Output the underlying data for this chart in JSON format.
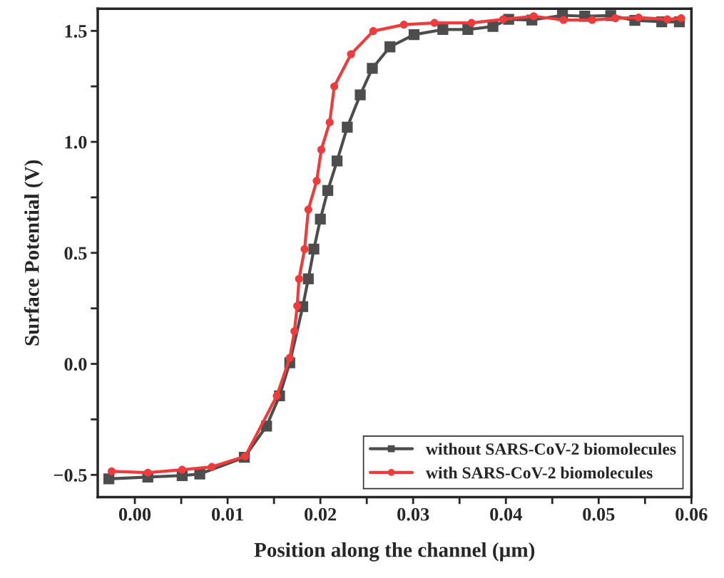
{
  "chart_data": {
    "type": "line",
    "xlabel": "Position along the channel (µm)",
    "ylabel": "Surface Potential (V)",
    "xlim": [
      -0.004,
      0.06
    ],
    "ylim": [
      -0.6,
      1.6
    ],
    "xticks": [
      {
        "value": 0.0,
        "label": "0.00"
      },
      {
        "value": 0.005,
        "label": null
      },
      {
        "value": 0.01,
        "label": "0.01"
      },
      {
        "value": 0.015,
        "label": null
      },
      {
        "value": 0.02,
        "label": "0.02"
      },
      {
        "value": 0.025,
        "label": null
      },
      {
        "value": 0.03,
        "label": "0.03"
      },
      {
        "value": 0.035,
        "label": null
      },
      {
        "value": 0.04,
        "label": "0.04"
      },
      {
        "value": 0.045,
        "label": null
      },
      {
        "value": 0.05,
        "label": "0.05"
      },
      {
        "value": 0.055,
        "label": null
      },
      {
        "value": 0.06,
        "label": "0.06"
      }
    ],
    "yticks": [
      {
        "value": -0.5,
        "label": "−0.5"
      },
      {
        "value": -0.25,
        "label": null
      },
      {
        "value": 0.0,
        "label": "0.0"
      },
      {
        "value": 0.25,
        "label": null
      },
      {
        "value": 0.5,
        "label": "0.5"
      },
      {
        "value": 0.75,
        "label": null
      },
      {
        "value": 1.0,
        "label": "1.0"
      },
      {
        "value": 1.25,
        "label": null
      },
      {
        "value": 1.5,
        "label": "1.5"
      }
    ],
    "grid": false,
    "legend": "bottom right",
    "series": [
      {
        "name": "without SARS-CoV-2 biomolecules",
        "color": "#4d4d4d",
        "marker": "square",
        "x": [
          -0.0028,
          0.0014,
          0.0051,
          0.007,
          0.0118,
          0.0142,
          0.0156,
          0.0167,
          0.0181,
          0.0187,
          0.0193,
          0.02,
          0.0208,
          0.0218,
          0.0229,
          0.0243,
          0.0256,
          0.0275,
          0.0301,
          0.0332,
          0.0359,
          0.0386,
          0.0403,
          0.0428,
          0.0461,
          0.0485,
          0.0513,
          0.0539,
          0.0568,
          0.0587
        ],
        "values": [
          -0.518,
          -0.51,
          -0.503,
          -0.496,
          -0.421,
          -0.28,
          -0.144,
          0.005,
          0.258,
          0.383,
          0.517,
          0.652,
          0.781,
          0.914,
          1.066,
          1.212,
          1.331,
          1.428,
          1.483,
          1.506,
          1.506,
          1.52,
          1.552,
          1.549,
          1.57,
          1.566,
          1.569,
          1.547,
          1.541,
          1.541
        ]
      },
      {
        "name": "with SARS-CoV-2 biomolecules",
        "color": "#ee3b3b",
        "marker": "circle",
        "x": [
          -0.0025,
          0.0014,
          0.0051,
          0.0083,
          0.0119,
          0.0153,
          0.0167,
          0.0172,
          0.0175,
          0.0177,
          0.0183,
          0.0187,
          0.0196,
          0.0201,
          0.021,
          0.0215,
          0.0233,
          0.0257,
          0.029,
          0.0323,
          0.0363,
          0.0397,
          0.043,
          0.0462,
          0.0493,
          0.0518,
          0.0543,
          0.0574,
          0.0589
        ],
        "values": [
          -0.484,
          -0.49,
          -0.477,
          -0.464,
          -0.416,
          -0.144,
          0.027,
          0.147,
          0.261,
          0.383,
          0.517,
          0.695,
          0.824,
          0.965,
          1.088,
          1.25,
          1.395,
          1.499,
          1.528,
          1.536,
          1.536,
          1.552,
          1.566,
          1.549,
          1.549,
          1.557,
          1.56,
          1.552,
          1.557
        ]
      }
    ]
  }
}
